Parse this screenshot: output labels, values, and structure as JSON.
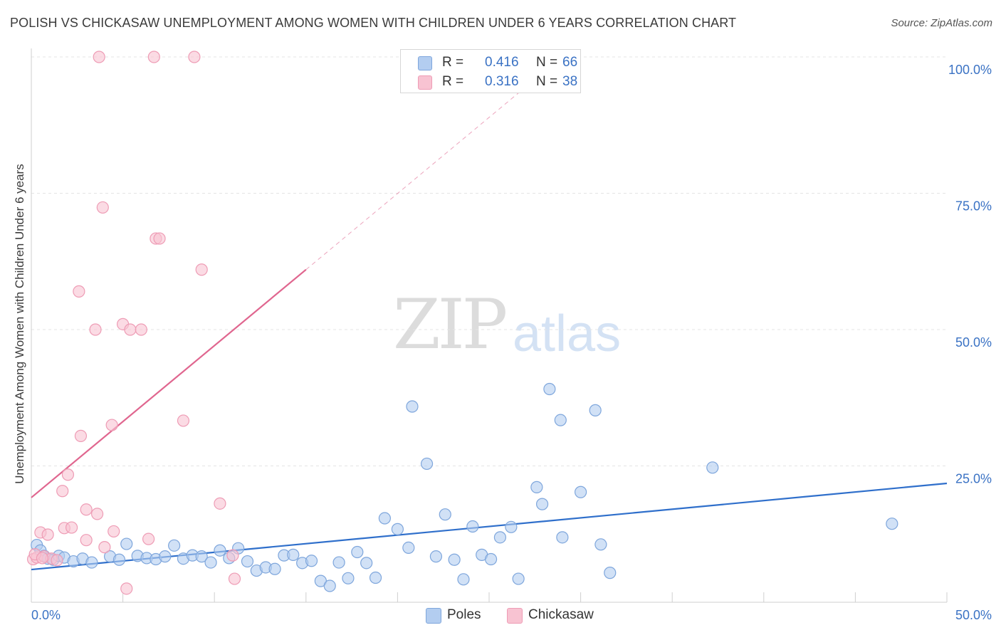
{
  "title": "POLISH VS CHICKASAW UNEMPLOYMENT AMONG WOMEN WITH CHILDREN UNDER 6 YEARS CORRELATION CHART",
  "source": "Source: ZipAtlas.com",
  "watermark": {
    "zip": "ZIP",
    "atlas": "atlas"
  },
  "legend": {
    "poles": {
      "r_label": "R =",
      "r_value": "0.416",
      "n_label": "N =",
      "n_value": "66"
    },
    "chickasaw": {
      "r_label": "R =",
      "r_value": "0.316",
      "n_label": "N =",
      "n_value": "38"
    }
  },
  "colors": {
    "poles_fill": "#b3cdf0",
    "poles_stroke": "#7ea6dc",
    "poles_line": "#2f6fcb",
    "chickasaw_fill": "#f8c3d2",
    "chickasaw_stroke": "#ee9cb5",
    "chickasaw_line": "#e0668f",
    "tick_text": "#3a72c4",
    "grid": "#e4e4e4"
  },
  "chart_data": {
    "type": "scatter",
    "ylabel": "Unemployment Among Women with Children Under 6 years",
    "xlim": [
      0,
      50
    ],
    "ylim": [
      0,
      100
    ],
    "x_tick_labels": [
      "0.0%",
      "50.0%"
    ],
    "y_ticks": [
      25,
      50,
      75,
      100
    ],
    "y_tick_labels": [
      "25.0%",
      "50.0%",
      "75.0%",
      "100.0%"
    ],
    "grid": true,
    "legend_position": "top-center",
    "series": [
      {
        "name": "Poles",
        "points": [
          [
            0.3,
            10.5
          ],
          [
            0.5,
            9.5
          ],
          [
            0.7,
            8.5
          ],
          [
            0.9,
            8.0
          ],
          [
            1.2,
            7.8
          ],
          [
            1.5,
            8.5
          ],
          [
            1.8,
            8.2
          ],
          [
            2.3,
            7.5
          ],
          [
            2.8,
            8.0
          ],
          [
            3.3,
            7.3
          ],
          [
            4.3,
            8.4
          ],
          [
            4.8,
            7.8
          ],
          [
            5.2,
            10.7
          ],
          [
            5.8,
            8.5
          ],
          [
            6.3,
            8.1
          ],
          [
            6.8,
            7.9
          ],
          [
            7.3,
            8.4
          ],
          [
            7.8,
            10.4
          ],
          [
            8.3,
            8.0
          ],
          [
            8.8,
            8.6
          ],
          [
            9.3,
            8.4
          ],
          [
            9.8,
            7.3
          ],
          [
            10.3,
            9.5
          ],
          [
            10.8,
            8.1
          ],
          [
            11.3,
            9.9
          ],
          [
            11.8,
            7.5
          ],
          [
            12.3,
            5.8
          ],
          [
            12.8,
            6.4
          ],
          [
            13.3,
            6.1
          ],
          [
            13.8,
            8.6
          ],
          [
            14.3,
            8.7
          ],
          [
            14.8,
            7.2
          ],
          [
            15.3,
            7.6
          ],
          [
            15.8,
            3.9
          ],
          [
            16.3,
            3.0
          ],
          [
            16.8,
            7.3
          ],
          [
            17.3,
            4.4
          ],
          [
            17.8,
            9.2
          ],
          [
            18.3,
            7.2
          ],
          [
            18.8,
            4.5
          ],
          [
            19.3,
            15.4
          ],
          [
            20.0,
            13.4
          ],
          [
            20.6,
            10.0
          ],
          [
            20.8,
            35.9
          ],
          [
            21.6,
            25.4
          ],
          [
            22.1,
            8.4
          ],
          [
            22.6,
            16.1
          ],
          [
            23.1,
            7.8
          ],
          [
            23.6,
            4.2
          ],
          [
            24.1,
            13.9
          ],
          [
            24.6,
            8.7
          ],
          [
            25.1,
            7.9
          ],
          [
            25.6,
            11.9
          ],
          [
            26.2,
            13.8
          ],
          [
            26.6,
            4.3
          ],
          [
            27.6,
            21.1
          ],
          [
            27.9,
            18.0
          ],
          [
            28.3,
            39.1
          ],
          [
            28.9,
            33.4
          ],
          [
            29.0,
            11.9
          ],
          [
            30.0,
            20.2
          ],
          [
            30.8,
            35.2
          ],
          [
            31.1,
            10.6
          ],
          [
            31.6,
            5.4
          ],
          [
            37.2,
            24.7
          ],
          [
            47.0,
            14.4
          ]
        ],
        "trend": {
          "x": [
            0,
            50
          ],
          "y": [
            6.0,
            21.8
          ]
        }
      },
      {
        "name": "Chickasaw",
        "points": [
          [
            0.1,
            7.9
          ],
          [
            0.3,
            8.2
          ],
          [
            0.5,
            12.8
          ],
          [
            0.7,
            8.4
          ],
          [
            0.9,
            12.4
          ],
          [
            1.1,
            8.0
          ],
          [
            1.4,
            7.7
          ],
          [
            1.7,
            20.4
          ],
          [
            1.8,
            13.6
          ],
          [
            2.0,
            23.4
          ],
          [
            2.2,
            13.7
          ],
          [
            2.6,
            57.0
          ],
          [
            2.7,
            30.5
          ],
          [
            3.0,
            11.4
          ],
          [
            3.0,
            17.0
          ],
          [
            3.5,
            50.0
          ],
          [
            3.6,
            16.2
          ],
          [
            3.7,
            100.0
          ],
          [
            3.9,
            72.4
          ],
          [
            4.0,
            10.1
          ],
          [
            4.4,
            32.5
          ],
          [
            4.5,
            13.0
          ],
          [
            5.0,
            51.0
          ],
          [
            5.2,
            2.5
          ],
          [
            5.4,
            50.0
          ],
          [
            6.0,
            50.0
          ],
          [
            6.4,
            11.6
          ],
          [
            6.7,
            100.0
          ],
          [
            6.8,
            66.7
          ],
          [
            7.0,
            66.7
          ],
          [
            8.3,
            33.3
          ],
          [
            8.9,
            100.0
          ],
          [
            9.3,
            61.0
          ],
          [
            10.3,
            18.1
          ],
          [
            11.0,
            8.6
          ],
          [
            11.1,
            4.3
          ],
          [
            0.2,
            8.8
          ],
          [
            0.6,
            8.1
          ]
        ],
        "trend": {
          "x": [
            0,
            15
          ],
          "y": [
            19.2,
            61.0
          ]
        },
        "trend_extension": {
          "x": [
            15,
            27
          ],
          "y": [
            61.0,
            94.5
          ]
        }
      }
    ]
  },
  "bottom_legend": {
    "poles": "Poles",
    "chickasaw": "Chickasaw"
  }
}
